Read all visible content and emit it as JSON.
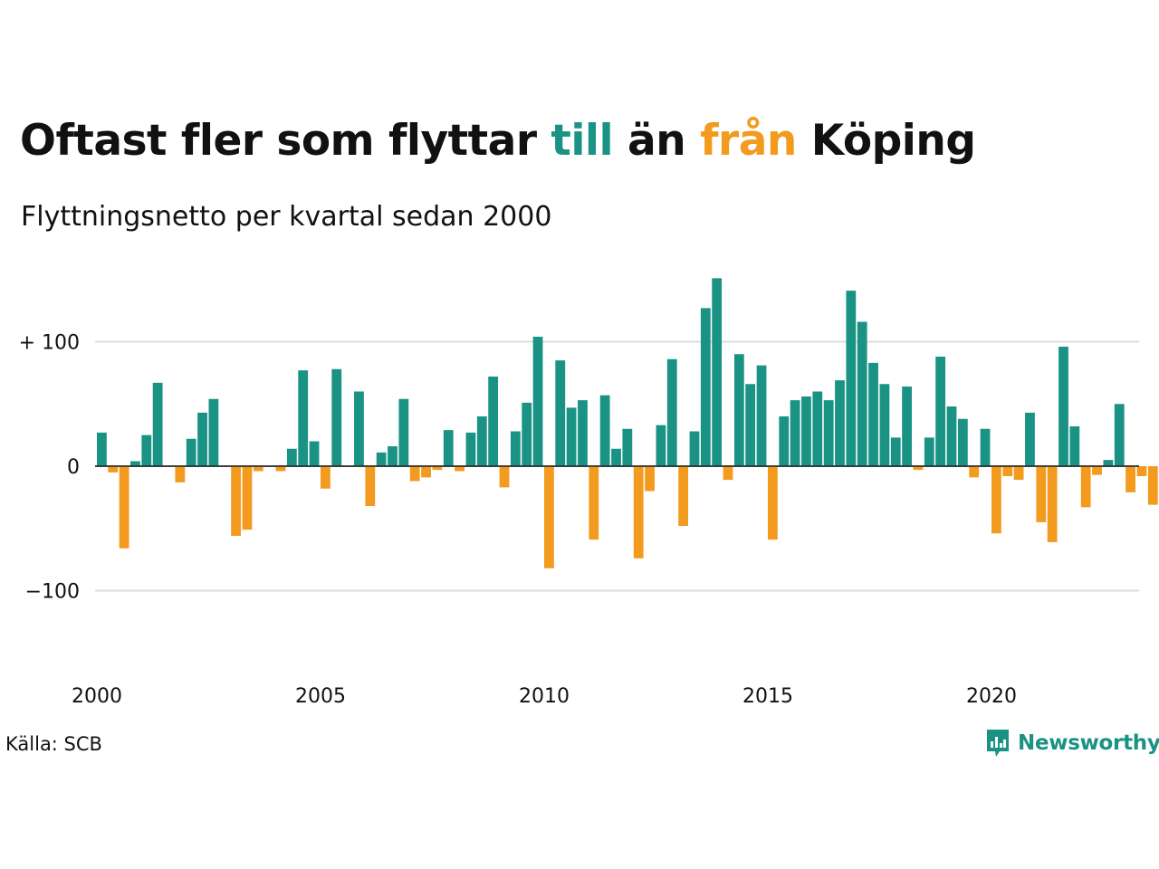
{
  "title": {
    "part1": "Oftast fler som flyttar ",
    "positive_word": "till",
    "part2": " än ",
    "negative_word": "från",
    "part3": " Köping"
  },
  "subtitle": "Flyttningsnetto per kvartal sedan 2000",
  "source": "Källa: SCB",
  "brand": "Newsworthy",
  "colors": {
    "positive": "#1a9385",
    "negative": "#f29b1f",
    "grid": "#dddddd",
    "text": "#111111"
  },
  "chart_data": {
    "type": "bar",
    "title": "Oftast fler som flyttar till än från Köping",
    "subtitle": "Flyttningsnetto per kvartal sedan 2000",
    "x_start_year": 2000,
    "periods_per_year": 4,
    "values": [
      27,
      -5,
      -66,
      4,
      25,
      67,
      0,
      -13,
      22,
      43,
      54,
      0,
      -56,
      -51,
      -4,
      0,
      -4,
      14,
      77,
      20,
      -18,
      78,
      0,
      60,
      -32,
      11,
      16,
      54,
      -12,
      -9,
      -3,
      29,
      -4,
      27,
      40,
      72,
      -17,
      28,
      51,
      104,
      -82,
      85,
      47,
      53,
      -59,
      57,
      14,
      30,
      -74,
      -20,
      33,
      86,
      -48,
      28,
      127,
      151,
      -11,
      90,
      66,
      81,
      -59,
      40,
      53,
      56,
      60,
      53,
      69,
      141,
      116,
      83,
      66,
      23,
      64,
      -3,
      23,
      88,
      48,
      38,
      -9,
      30,
      -54,
      -8,
      -11,
      43,
      -45,
      -61,
      96,
      32,
      -33,
      -7,
      5,
      50,
      -21,
      -8,
      -31
    ],
    "x_ticks": [
      2000,
      2005,
      2010,
      2015,
      2020
    ],
    "x_tick_labels": [
      "2000",
      "2005",
      "2010",
      "2015",
      "2020"
    ],
    "y_ticks": [
      -100,
      0,
      100
    ],
    "y_tick_labels": [
      "−100",
      "0",
      "+ 100"
    ],
    "ylim": [
      -160,
      160
    ],
    "grid": true,
    "legend": "none"
  }
}
